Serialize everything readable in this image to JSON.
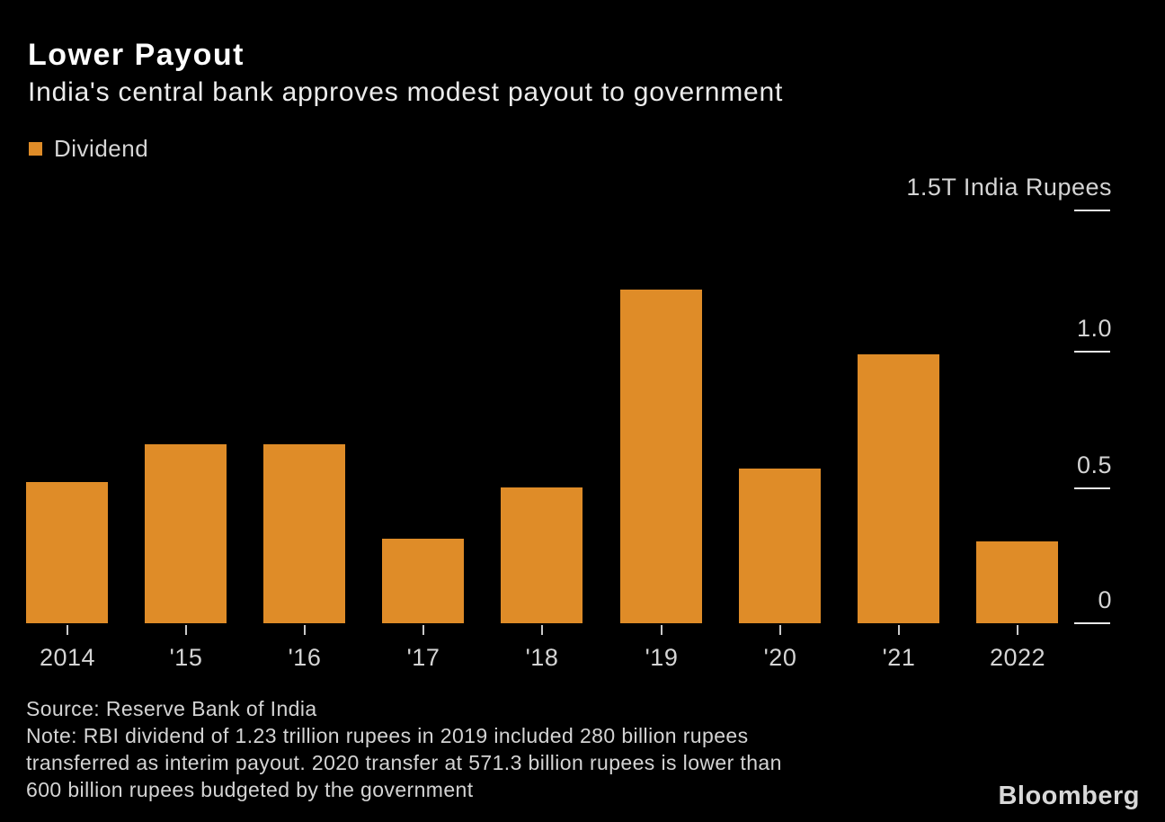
{
  "title": "Lower Payout",
  "subtitle": "India's central bank approves modest payout to government",
  "legend": {
    "label": "Dividend",
    "swatch_color": "#df8c28"
  },
  "chart_data": {
    "type": "bar",
    "title": "Lower Payout",
    "subtitle": "India's central bank approves modest payout to government",
    "series_name": "Dividend",
    "unit": "trillion India rupees",
    "categories": [
      "2014",
      "'15",
      "'16",
      "'17",
      "'18",
      "'19",
      "'20",
      "'21",
      "2022"
    ],
    "values": [
      0.52,
      0.66,
      0.66,
      0.31,
      0.5,
      1.23,
      0.57,
      0.99,
      0.3
    ],
    "bar_color": "#df8c28",
    "ylim": [
      0,
      1.5
    ],
    "yticks": [
      {
        "label": "1.5T India Rupees",
        "value": 1.5
      },
      {
        "label": "1.0",
        "value": 1.0
      },
      {
        "label": "0.5",
        "value": 0.5
      },
      {
        "label": "0",
        "value": 0
      }
    ],
    "grid": false,
    "legend_position": "top-left",
    "axis_side": "right"
  },
  "footer": {
    "source": "Source: Reserve Bank of India",
    "note_lines": [
      "Note: RBI dividend of 1.23 trillion rupees in 2019 included 280 billion rupees",
      "transferred as interim payout. 2020 transfer at 571.3 billion rupees is lower than",
      "600 billion rupees budgeted by the government"
    ],
    "brand": "Bloomberg"
  }
}
